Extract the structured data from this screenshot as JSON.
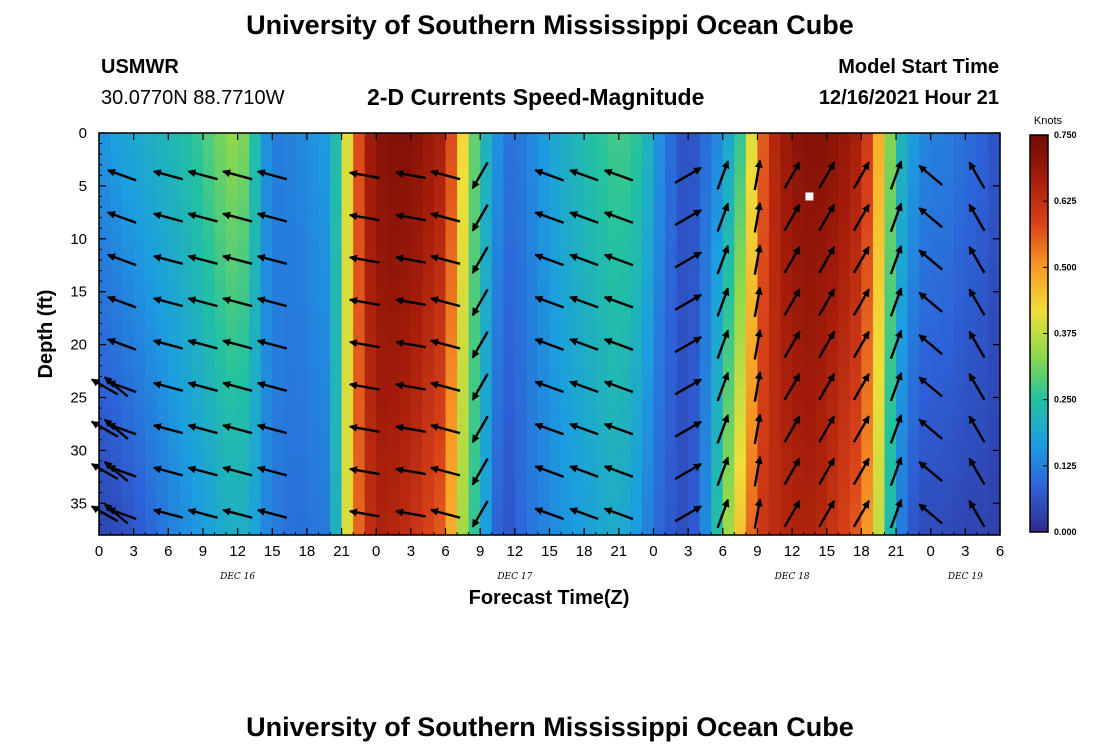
{
  "page": {
    "title": "University of Southern Mississippi Ocean Cube",
    "station_id": "USMWR",
    "station_coords": "30.0770N  88.7710W",
    "subtitle": "2-D Currents Speed-Magnitude",
    "model_start_label": "Model Start Time",
    "model_start_value": "12/16/2021 Hour 21",
    "footer_title": "University of Southern Mississippi Ocean Cube"
  },
  "colors": {
    "scale": [
      "#302a8c",
      "#2e62d8",
      "#1c9ee0",
      "#23c2a0",
      "#8ed84a",
      "#f0de3a",
      "#f99a25",
      "#d8421a",
      "#a41c0a",
      "#6e0c06"
    ],
    "arrow": "#000000",
    "marker": "#ffffff"
  },
  "chart_data": {
    "type": "heatmap",
    "title": "2-D Currents Speed-Magnitude",
    "xlabel": "Forecast Time(Z)",
    "ylabel": "Depth (ft)",
    "colorbar_title": "Knots",
    "x_range_hours": [
      0,
      78
    ],
    "y_range_ft": [
      0,
      38
    ],
    "x_ticks": [
      {
        "h": 0,
        "label": "0"
      },
      {
        "h": 3,
        "label": "3"
      },
      {
        "h": 6,
        "label": "6"
      },
      {
        "h": 9,
        "label": "9"
      },
      {
        "h": 12,
        "label": "12"
      },
      {
        "h": 15,
        "label": "15"
      },
      {
        "h": 18,
        "label": "18"
      },
      {
        "h": 21,
        "label": "21"
      },
      {
        "h": 24,
        "label": "0"
      },
      {
        "h": 27,
        "label": "3"
      },
      {
        "h": 30,
        "label": "6"
      },
      {
        "h": 33,
        "label": "9"
      },
      {
        "h": 36,
        "label": "12"
      },
      {
        "h": 39,
        "label": "15"
      },
      {
        "h": 42,
        "label": "18"
      },
      {
        "h": 45,
        "label": "21"
      },
      {
        "h": 48,
        "label": "0"
      },
      {
        "h": 51,
        "label": "3"
      },
      {
        "h": 54,
        "label": "6"
      },
      {
        "h": 57,
        "label": "9"
      },
      {
        "h": 60,
        "label": "12"
      },
      {
        "h": 63,
        "label": "15"
      },
      {
        "h": 66,
        "label": "18"
      },
      {
        "h": 69,
        "label": "21"
      },
      {
        "h": 72,
        "label": "0"
      },
      {
        "h": 75,
        "label": "3"
      },
      {
        "h": 78,
        "label": "6"
      }
    ],
    "day_labels": [
      {
        "h": 12,
        "label": "DEC 16"
      },
      {
        "h": 36,
        "label": "DEC 17"
      },
      {
        "h": 60,
        "label": "DEC 18"
      },
      {
        "h": 75,
        "label": "DEC 19"
      }
    ],
    "y_ticks": [
      0,
      5,
      10,
      15,
      20,
      25,
      30,
      35
    ],
    "colorbar": {
      "min": 0.0,
      "max": 0.75,
      "ticks": [
        {
          "v": 0.75,
          "label": "0.750"
        },
        {
          "v": 0.625,
          "label": "0.625"
        },
        {
          "v": 0.5,
          "label": "0.500"
        },
        {
          "v": 0.375,
          "label": "0.375"
        },
        {
          "v": 0.25,
          "label": "0.250"
        },
        {
          "v": 0.125,
          "label": "0.125"
        },
        {
          "v": 0.0,
          "label": "0.000"
        }
      ]
    },
    "speed_profile": {
      "hours": [
        0,
        2,
        4,
        6,
        8,
        10,
        11,
        12,
        13,
        14,
        15,
        17,
        20,
        21,
        22,
        23,
        24,
        25,
        27,
        30,
        31,
        32,
        33,
        34,
        35,
        36,
        38,
        40,
        43,
        45,
        47,
        48,
        49,
        50,
        51,
        52,
        53,
        54,
        56,
        57,
        58,
        60,
        62,
        64,
        66,
        67,
        68,
        69,
        70,
        71,
        72,
        73,
        75,
        77,
        78
      ],
      "surface_knots": [
        0.15,
        0.18,
        0.2,
        0.22,
        0.25,
        0.3,
        0.33,
        0.34,
        0.3,
        0.18,
        0.12,
        0.13,
        0.17,
        0.3,
        0.5,
        0.65,
        0.7,
        0.72,
        0.72,
        0.65,
        0.5,
        0.35,
        0.25,
        0.18,
        0.12,
        0.1,
        0.15,
        0.2,
        0.25,
        0.28,
        0.25,
        0.18,
        0.12,
        0.08,
        0.05,
        0.08,
        0.12,
        0.15,
        0.3,
        0.5,
        0.62,
        0.7,
        0.72,
        0.7,
        0.65,
        0.55,
        0.4,
        0.25,
        0.18,
        0.15,
        0.12,
        0.13,
        0.1,
        0.08,
        0.05
      ],
      "bottom_knots": [
        0.04,
        0.05,
        0.08,
        0.12,
        0.15,
        0.18,
        0.2,
        0.2,
        0.2,
        0.15,
        0.12,
        0.1,
        0.12,
        0.3,
        0.5,
        0.6,
        0.65,
        0.65,
        0.62,
        0.55,
        0.4,
        0.3,
        0.22,
        0.12,
        0.05,
        0.08,
        0.12,
        0.15,
        0.18,
        0.2,
        0.15,
        0.1,
        0.08,
        0.06,
        0.05,
        0.1,
        0.18,
        0.3,
        0.5,
        0.6,
        0.62,
        0.65,
        0.65,
        0.6,
        0.55,
        0.45,
        0.3,
        0.15,
        0.08,
        0.05,
        0.05,
        0.05,
        0.04,
        0.04,
        0.03
      ]
    },
    "vectors": {
      "hours": [
        2,
        6,
        9,
        12,
        15,
        23,
        27,
        30,
        33,
        39,
        42,
        45,
        51,
        54,
        57,
        60,
        63,
        66,
        69,
        72,
        76
      ],
      "depths_ft": [
        4,
        8,
        12,
        16,
        20,
        24,
        28,
        32,
        36
      ],
      "directions_deg": [
        200,
        195,
        195,
        195,
        195,
        190,
        190,
        195,
        120,
        200,
        200,
        200,
        330,
        290,
        280,
        300,
        300,
        300,
        290,
        220,
        240
      ],
      "bottom_hours": [
        0,
        1
      ],
      "bottom_direction_deg": [
        210,
        220
      ]
    },
    "marker": {
      "h": 61.5,
      "depth_ft": 6
    }
  }
}
